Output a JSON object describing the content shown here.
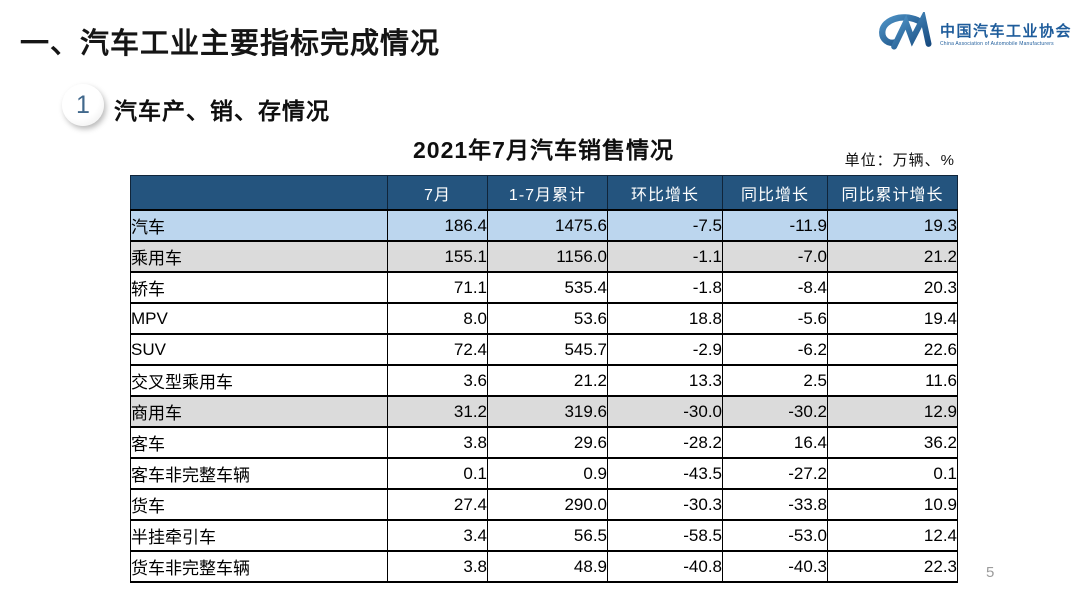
{
  "page": {
    "title": "一、汽车工业主要指标完成情况",
    "page_number": "5"
  },
  "logo": {
    "name_cn": "中国汽车工业协会",
    "name_en": "China Association of Automobile Manufacturers",
    "brand_color": "#1E5C9B"
  },
  "section": {
    "badge_number": "1",
    "heading": "汽车产、销、存情况"
  },
  "table": {
    "title": "2021年7月汽车销售情况",
    "unit_label": "单位：万辆、%",
    "columns": [
      "",
      "7月",
      "1-7月累计",
      "环比增长",
      "同比增长",
      "同比累计增长"
    ],
    "rows": [
      {
        "label": "汽车",
        "indent": 0,
        "highlight": "blue",
        "values": [
          "186.4",
          "1475.6",
          "-7.5",
          "-11.9",
          "19.3"
        ]
      },
      {
        "label": "乘用车",
        "indent": 1,
        "highlight": "gray",
        "values": [
          "155.1",
          "1156.0",
          "-1.1",
          "-7.0",
          "21.2"
        ]
      },
      {
        "label": "轿车",
        "indent": 2,
        "highlight": "none",
        "values": [
          "71.1",
          "535.4",
          "-1.8",
          "-8.4",
          "20.3"
        ]
      },
      {
        "label": "MPV",
        "indent": 2,
        "highlight": "none",
        "values": [
          "8.0",
          "53.6",
          "18.8",
          "-5.6",
          "19.4"
        ]
      },
      {
        "label": "SUV",
        "indent": 2,
        "highlight": "none",
        "values": [
          "72.4",
          "545.7",
          "-2.9",
          "-6.2",
          "22.6"
        ]
      },
      {
        "label": "交叉型乘用车",
        "indent": 2,
        "highlight": "none",
        "values": [
          "3.6",
          "21.2",
          "13.3",
          "2.5",
          "11.6"
        ]
      },
      {
        "label": "商用车",
        "indent": 1,
        "highlight": "gray",
        "values": [
          "31.2",
          "319.6",
          "-30.0",
          "-30.2",
          "12.9"
        ]
      },
      {
        "label": "客车",
        "indent": 2,
        "highlight": "none",
        "values": [
          "3.8",
          "29.6",
          "-28.2",
          "16.4",
          "36.2"
        ]
      },
      {
        "label": "客车非完整车辆",
        "indent": 3,
        "highlight": "none",
        "values": [
          "0.1",
          "0.9",
          "-43.5",
          "-27.2",
          "0.1"
        ]
      },
      {
        "label": "货车",
        "indent": 2,
        "highlight": "none",
        "values": [
          "27.4",
          "290.0",
          "-30.3",
          "-33.8",
          "10.9"
        ]
      },
      {
        "label": "半挂牵引车",
        "indent": 3,
        "highlight": "none",
        "values": [
          "3.4",
          "56.5",
          "-58.5",
          "-53.0",
          "12.4"
        ]
      },
      {
        "label": "货车非完整车辆",
        "indent": 3,
        "highlight": "none",
        "values": [
          "3.8",
          "48.9",
          "-40.8",
          "-40.3",
          "22.3"
        ]
      }
    ],
    "colors": {
      "header_bg": "#24547E",
      "header_text": "#FFFFFF",
      "row_blue": "#BCD6EE",
      "row_gray": "#DBDBDB",
      "border": "#000000"
    }
  }
}
